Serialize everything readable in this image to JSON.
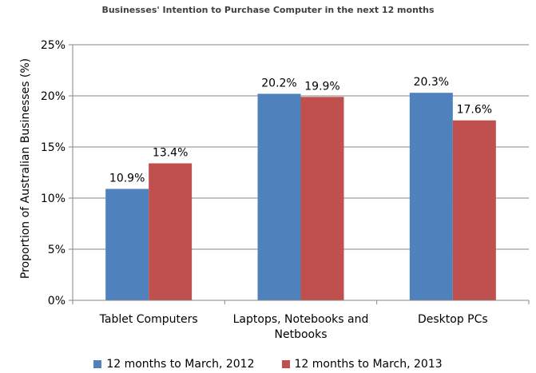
{
  "chart_data": {
    "type": "bar",
    "title": "Businesses' Intention to Purchase Computer in the next 12 months",
    "xlabel": "",
    "ylabel": "Proportion of Australian Businesses (%)",
    "ylim": [
      0,
      25
    ],
    "y_ticks": [
      0,
      5,
      10,
      15,
      20,
      25
    ],
    "y_tick_labels": [
      "0%",
      "5%",
      "10%",
      "15%",
      "20%",
      "25%"
    ],
    "categories": [
      "Tablet Computers",
      "Laptops, Notebooks and Netbooks",
      "Desktop PCs"
    ],
    "category_lines": [
      [
        "Tablet Computers"
      ],
      [
        "Laptops, Notebooks and",
        "Netbooks"
      ],
      [
        "Desktop PCs"
      ]
    ],
    "series": [
      {
        "name": "12 months to March, 2012",
        "values": [
          10.9,
          20.2,
          20.3
        ],
        "labels": [
          "10.9%",
          "20.2%",
          "20.3%"
        ],
        "color": "#4F81BD"
      },
      {
        "name": "12 months to March, 2013",
        "values": [
          13.4,
          19.9,
          17.6
        ],
        "labels": [
          "13.4%",
          "19.9%",
          "17.6%"
        ],
        "color": "#C0504D"
      }
    ],
    "grid": true,
    "legend_position": "bottom"
  },
  "colors": {
    "grid": "#868686",
    "axis": "#868686"
  }
}
